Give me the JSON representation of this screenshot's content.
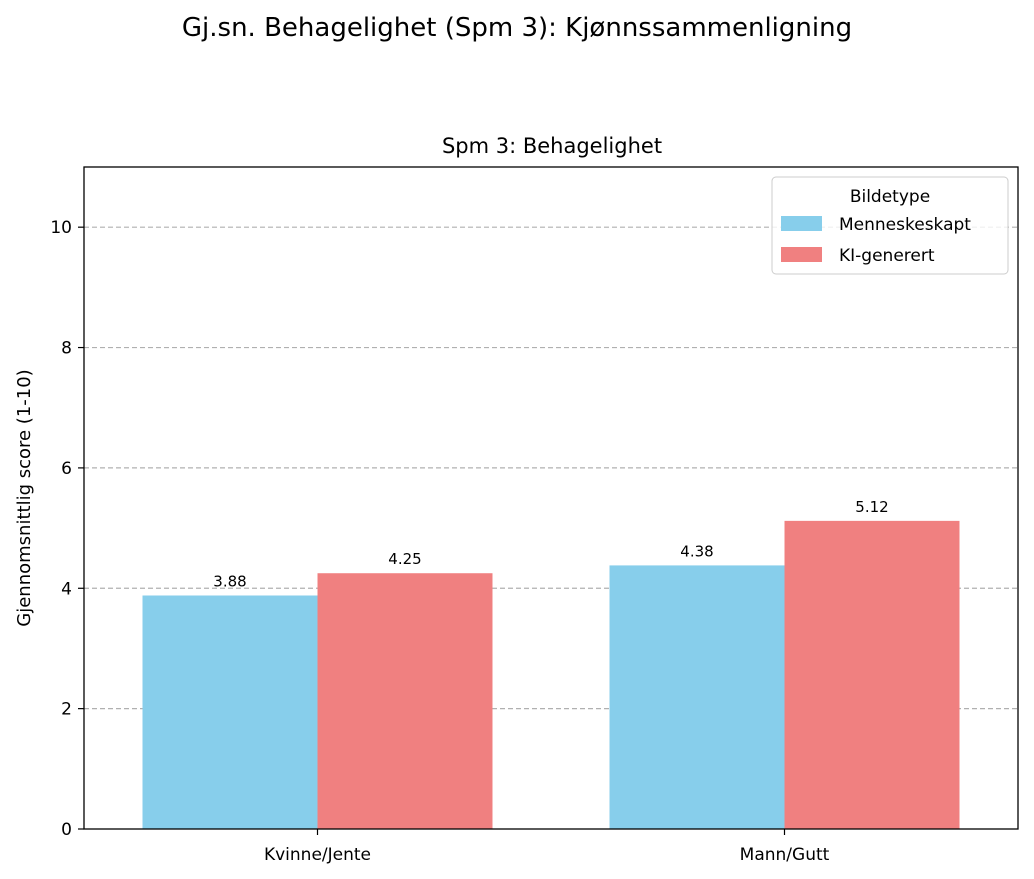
{
  "chart_data": {
    "type": "bar",
    "suptitle": "Gj.sn. Behagelighet (Spm 3): Kjønnssammenligning",
    "title": "Spm 3: Behagelighet",
    "xlabel": "",
    "ylabel": "Gjennomsnittlig score (1-10)",
    "ylim": [
      0,
      11
    ],
    "yticks": [
      0,
      2,
      4,
      6,
      8,
      10
    ],
    "grid": "y-dashed",
    "categories": [
      "Kvinne/Jente",
      "Mann/Gutt"
    ],
    "series": [
      {
        "name": "Menneskeskapt",
        "values": [
          3.88,
          4.38
        ],
        "color": "#87CEEB"
      },
      {
        "name": "KI-generert",
        "values": [
          4.25,
          5.12
        ],
        "color": "#F08080"
      }
    ],
    "legend": {
      "title": "Bildetype",
      "placement": "top-right"
    }
  }
}
